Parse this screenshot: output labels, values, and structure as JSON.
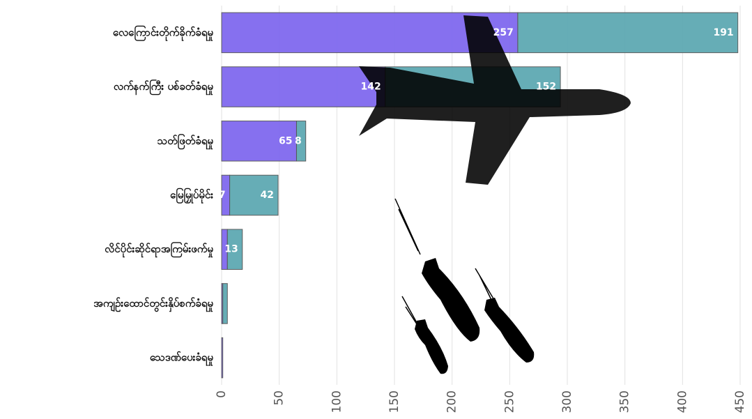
{
  "chart_data": {
    "type": "stacked_barh",
    "categories": [
      "လေကြောင်းတိုက်ခိုက်ခံရမှု",
      "လက်နက်ကြီး ပစ်ခတ်ခံရမှု",
      "သတ်ဖြတ်ခံရမှု",
      "မြေမြှုပ်မိုင်း",
      "လိင်ပိုင်းဆိုင်ရာအကြမ်းဖက်မှု",
      "အကျဉ်းထောင်တွင်းနှိပ်စက်ခံရမှု",
      "သေဒဏ်ပေးခံရမှု"
    ],
    "series": [
      {
        "color": "#8069ef",
        "values": [
          257,
          142,
          65,
          7,
          5,
          1,
          1
        ]
      },
      {
        "color": "#5ea9b3",
        "values": [
          191,
          152,
          8,
          42,
          13,
          4,
          0
        ]
      }
    ],
    "xlim": [
      0,
      450
    ],
    "xticks": [
      0,
      50,
      100,
      150,
      200,
      250,
      300,
      350,
      400,
      450
    ],
    "grid": true
  }
}
